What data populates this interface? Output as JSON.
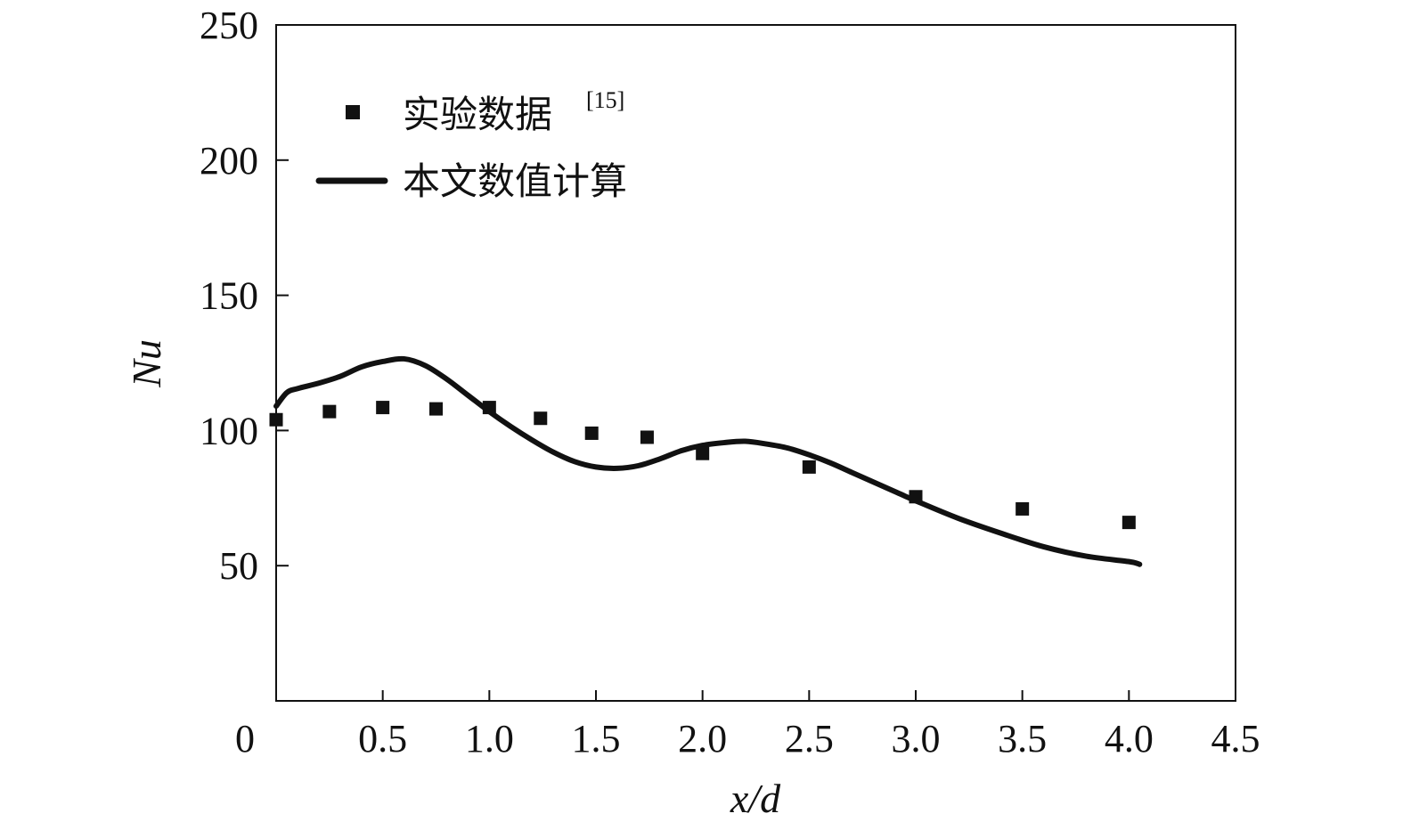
{
  "chart_data": {
    "type": "line",
    "xlabel": "x/d",
    "ylabel": "Nu",
    "xlim": [
      0,
      4.5
    ],
    "ylim": [
      0,
      250
    ],
    "x_ticks": [
      "0",
      "0.5",
      "1.0",
      "1.5",
      "2.0",
      "2.5",
      "3.0",
      "3.5",
      "4.0",
      "4.5"
    ],
    "y_ticks": [
      "50",
      "100",
      "150",
      "200",
      "250"
    ],
    "legend_position": "top-left",
    "grid": false,
    "series": [
      {
        "name": "实验数据",
        "name_superscript": "[15]",
        "kind": "scatter",
        "marker": "square",
        "color": "#111111",
        "x": [
          0.0,
          0.25,
          0.5,
          0.75,
          1.0,
          1.24,
          1.48,
          1.74,
          2.0,
          2.5,
          3.0,
          3.5,
          4.0
        ],
        "y": [
          104,
          107,
          108.5,
          108,
          108.5,
          104.5,
          99,
          97.5,
          91.5,
          86.5,
          75.5,
          71,
          66
        ]
      },
      {
        "name": "本文数值计算",
        "kind": "line",
        "color": "#111111",
        "x": [
          0.0,
          0.05,
          0.1,
          0.2,
          0.3,
          0.4,
          0.5,
          0.6,
          0.7,
          0.8,
          0.9,
          1.0,
          1.1,
          1.2,
          1.3,
          1.4,
          1.5,
          1.6,
          1.7,
          1.8,
          1.9,
          2.0,
          2.1,
          2.2,
          2.3,
          2.4,
          2.5,
          2.6,
          2.7,
          2.8,
          2.9,
          3.0,
          3.2,
          3.4,
          3.6,
          3.8,
          4.0,
          4.05
        ],
        "y": [
          109,
          114,
          115.5,
          117.5,
          120,
          123.5,
          125.5,
          126.5,
          124,
          119,
          113,
          107,
          101.5,
          96.5,
          92,
          88.5,
          86.5,
          86,
          87,
          89.5,
          92.5,
          94.5,
          95.5,
          96,
          95,
          93.5,
          91,
          88,
          84.5,
          81,
          77.5,
          74,
          67.5,
          62,
          57,
          53.5,
          51.5,
          50.5
        ]
      }
    ]
  }
}
